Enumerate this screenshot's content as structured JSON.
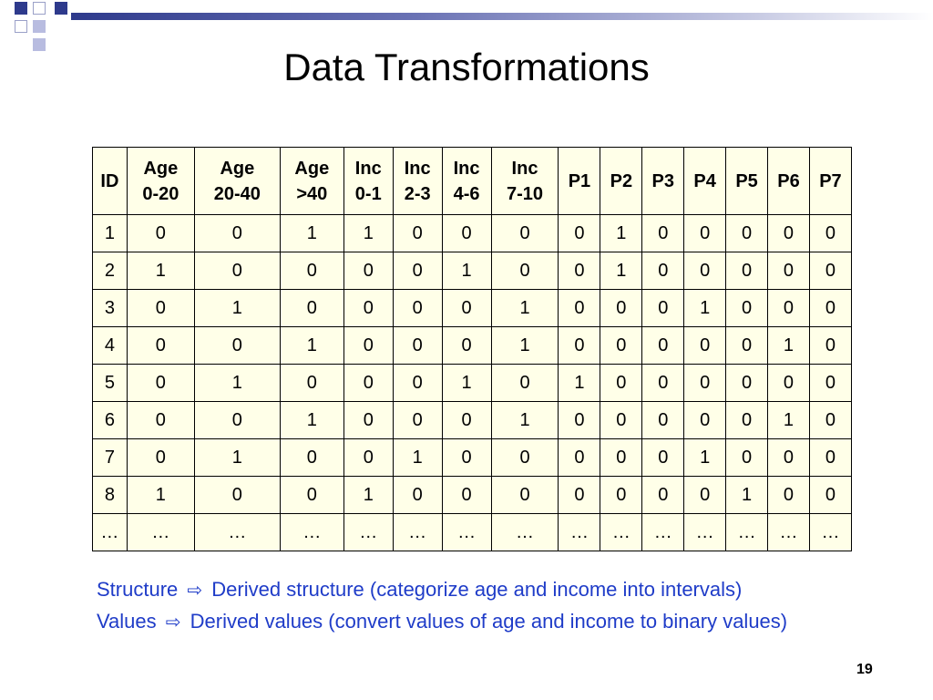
{
  "title": "Data Transformations",
  "table": {
    "headers": [
      {
        "line1": "ID",
        "line2": ""
      },
      {
        "line1": "Age",
        "line2": "0-20"
      },
      {
        "line1": "Age",
        "line2": "20-40"
      },
      {
        "line1": "Age",
        "line2": ">40"
      },
      {
        "line1": "Inc",
        "line2": "0-1"
      },
      {
        "line1": "Inc",
        "line2": "2-3"
      },
      {
        "line1": "Inc",
        "line2": "4-6"
      },
      {
        "line1": "Inc",
        "line2": "7-10"
      },
      {
        "line1": "P1",
        "line2": ""
      },
      {
        "line1": "P2",
        "line2": ""
      },
      {
        "line1": "P3",
        "line2": ""
      },
      {
        "line1": "P4",
        "line2": ""
      },
      {
        "line1": "P5",
        "line2": ""
      },
      {
        "line1": "P6",
        "line2": ""
      },
      {
        "line1": "P7",
        "line2": ""
      }
    ],
    "rows": [
      [
        "1",
        "0",
        "0",
        "1",
        "1",
        "0",
        "0",
        "0",
        "0",
        "1",
        "0",
        "0",
        "0",
        "0",
        "0"
      ],
      [
        "2",
        "1",
        "0",
        "0",
        "0",
        "0",
        "1",
        "0",
        "0",
        "1",
        "0",
        "0",
        "0",
        "0",
        "0"
      ],
      [
        "3",
        "0",
        "1",
        "0",
        "0",
        "0",
        "0",
        "1",
        "0",
        "0",
        "0",
        "1",
        "0",
        "0",
        "0"
      ],
      [
        "4",
        "0",
        "0",
        "1",
        "0",
        "0",
        "0",
        "1",
        "0",
        "0",
        "0",
        "0",
        "0",
        "1",
        "0"
      ],
      [
        "5",
        "0",
        "1",
        "0",
        "0",
        "0",
        "1",
        "0",
        "1",
        "0",
        "0",
        "0",
        "0",
        "0",
        "0"
      ],
      [
        "6",
        "0",
        "0",
        "1",
        "0",
        "0",
        "0",
        "1",
        "0",
        "0",
        "0",
        "0",
        "0",
        "1",
        "0"
      ],
      [
        "7",
        "0",
        "1",
        "0",
        "0",
        "1",
        "0",
        "0",
        "0",
        "0",
        "0",
        "1",
        "0",
        "0",
        "0"
      ],
      [
        "8",
        "1",
        "0",
        "0",
        "1",
        "0",
        "0",
        "0",
        "0",
        "0",
        "0",
        "0",
        "1",
        "0",
        "0"
      ],
      [
        "…",
        "…",
        "…",
        "…",
        "…",
        "…",
        "…",
        "…",
        "…",
        "…",
        "…",
        "…",
        "…",
        "…",
        "…"
      ]
    ]
  },
  "notes": {
    "line1_label": "Structure",
    "line1_text": "Derived structure (categorize age and income into intervals)",
    "line2_label": "Values",
    "line2_text": "Derived values (convert values of age and income to binary values)",
    "arrow_icon": "right-arrow-icon",
    "color": "#1f3cc8"
  },
  "page_number": "19"
}
